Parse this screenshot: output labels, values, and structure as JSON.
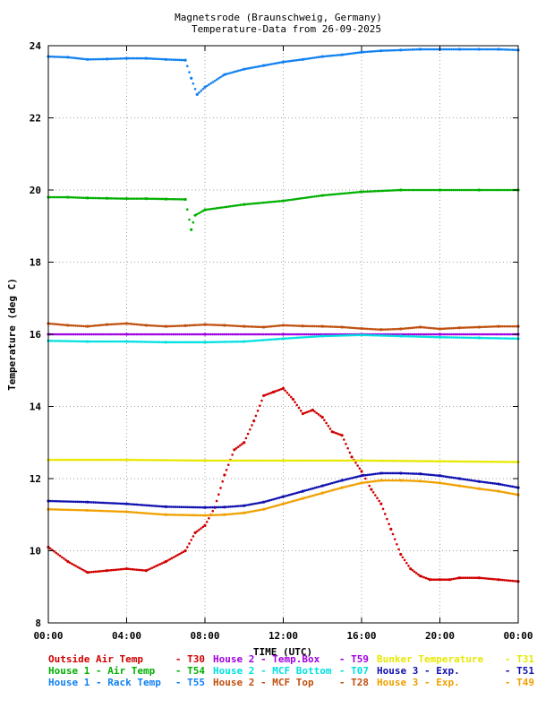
{
  "chart_data": {
    "type": "scatter",
    "title": "Magnetsrode (Braunschweig, Germany)",
    "subtitle": "Temperature-Data from 26-09-2025",
    "xlabel": "TIME (UTC)",
    "ylabel": "Temperature (deg C)",
    "xlim": [
      0,
      24
    ],
    "ylim": [
      8,
      24
    ],
    "x_ticks": [
      "00:00",
      "04:00",
      "08:00",
      "12:00",
      "16:00",
      "20:00",
      "00:00"
    ],
    "y_ticks": [
      "8",
      "10",
      "12",
      "14",
      "16",
      "18",
      "20",
      "22",
      "24"
    ],
    "grid": true,
    "legend_position": "bottom",
    "series": [
      {
        "name": "Outside Air Temp",
        "code": "T30",
        "color": "#d00000",
        "x": [
          0,
          1,
          2,
          3,
          4,
          5,
          6,
          7,
          7.5,
          8,
          8.5,
          9,
          9.5,
          10,
          10.5,
          11,
          11.5,
          12,
          12.5,
          13,
          13.5,
          14,
          14.5,
          15,
          15.5,
          16,
          16.5,
          17,
          17.5,
          18,
          18.5,
          19,
          19.5,
          20,
          20.5,
          21,
          22,
          23,
          24
        ],
        "values": [
          10.1,
          9.7,
          9.4,
          9.45,
          9.5,
          9.45,
          9.7,
          10,
          10.5,
          10.7,
          11.2,
          12.1,
          12.8,
          13.0,
          13.6,
          14.3,
          14.4,
          14.5,
          14.2,
          13.8,
          13.9,
          13.7,
          13.3,
          13.2,
          12.6,
          12.2,
          11.7,
          11.3,
          10.6,
          9.9,
          9.5,
          9.3,
          9.2,
          9.2,
          9.2,
          9.25,
          9.25,
          9.2,
          9.15
        ]
      },
      {
        "name": "House 1 - Air  Temp",
        "code": "T54",
        "color": "#00b000",
        "x": [
          0,
          1,
          2,
          3,
          4,
          5,
          6,
          7,
          7.3,
          7.5,
          8,
          10,
          12,
          14,
          16,
          18,
          20,
          22,
          24
        ],
        "values": [
          19.8,
          19.8,
          19.78,
          19.77,
          19.76,
          19.76,
          19.75,
          19.74,
          18.9,
          19.3,
          19.45,
          19.6,
          19.7,
          19.85,
          19.95,
          20.0,
          20.0,
          20.0,
          20.0
        ]
      },
      {
        "name": "House 1 - Rack Temp",
        "code": "T55",
        "color": "#1080f0",
        "x": [
          0,
          1,
          2,
          3,
          4,
          5,
          6,
          7,
          7.3,
          7.6,
          8,
          9,
          10,
          11,
          12,
          13,
          14,
          15,
          16,
          17,
          18,
          19,
          20,
          21,
          22,
          23,
          24
        ],
        "values": [
          23.7,
          23.68,
          23.62,
          23.63,
          23.65,
          23.65,
          23.62,
          23.6,
          23.1,
          22.65,
          22.85,
          23.2,
          23.35,
          23.45,
          23.55,
          23.62,
          23.7,
          23.75,
          23.82,
          23.86,
          23.88,
          23.9,
          23.9,
          23.9,
          23.9,
          23.9,
          23.88
        ]
      },
      {
        "name": "House 2 - Temp.Box",
        "code": "T59",
        "color": "#a000e0",
        "x": [
          0,
          4,
          8,
          12,
          16,
          20,
          24
        ],
        "values": [
          16.0,
          16.0,
          16.0,
          16.0,
          16.0,
          16.0,
          16.0
        ]
      },
      {
        "name": "House 2 - MCF Bottom",
        "code": "T07",
        "color": "#00e0e0",
        "x": [
          0,
          2,
          4,
          6,
          8,
          10,
          12,
          14,
          16,
          18,
          20,
          22,
          24
        ],
        "values": [
          15.82,
          15.8,
          15.8,
          15.78,
          15.78,
          15.8,
          15.88,
          15.95,
          15.98,
          15.95,
          15.92,
          15.9,
          15.88
        ]
      },
      {
        "name": "House 2 - MCF Top",
        "code": "T28",
        "color": "#c05010",
        "x": [
          0,
          1,
          2,
          3,
          4,
          5,
          6,
          7,
          8,
          9,
          10,
          11,
          12,
          13,
          14,
          15,
          16,
          17,
          18,
          19,
          20,
          21,
          22,
          23,
          24
        ],
        "values": [
          16.3,
          16.25,
          16.22,
          16.27,
          16.3,
          16.25,
          16.22,
          16.24,
          16.27,
          16.25,
          16.22,
          16.2,
          16.25,
          16.23,
          16.22,
          16.2,
          16.16,
          16.13,
          16.15,
          16.2,
          16.15,
          16.18,
          16.2,
          16.22,
          16.22
        ]
      },
      {
        "name": "Bunker Temperature",
        "code": "T31",
        "color": "#e8e800",
        "x": [
          0,
          4,
          8,
          12,
          16,
          20,
          24
        ],
        "values": [
          12.52,
          12.52,
          12.5,
          12.5,
          12.5,
          12.48,
          12.46
        ]
      },
      {
        "name": "House 3 - Exp.",
        "code": "T51",
        "color": "#1010b0",
        "x": [
          0,
          2,
          4,
          6,
          8,
          9,
          10,
          11,
          12,
          13,
          14,
          15,
          16,
          17,
          18,
          19,
          20,
          21,
          22,
          23,
          24
        ],
        "values": [
          11.38,
          11.35,
          11.3,
          11.22,
          11.2,
          11.21,
          11.25,
          11.35,
          11.5,
          11.65,
          11.8,
          11.95,
          12.08,
          12.15,
          12.15,
          12.13,
          12.08,
          12.0,
          11.92,
          11.85,
          11.75
        ]
      },
      {
        "name": "House 3 - Exp.",
        "code": "T49",
        "color": "#f0a000",
        "x": [
          0,
          2,
          4,
          6,
          8,
          9,
          10,
          11,
          12,
          13,
          14,
          15,
          16,
          17,
          18,
          19,
          20,
          21,
          22,
          23,
          24
        ],
        "values": [
          11.15,
          11.12,
          11.08,
          11.0,
          10.98,
          11.0,
          11.05,
          11.15,
          11.3,
          11.45,
          11.6,
          11.75,
          11.88,
          11.95,
          11.95,
          11.93,
          11.88,
          11.8,
          11.72,
          11.65,
          11.55
        ]
      }
    ]
  }
}
